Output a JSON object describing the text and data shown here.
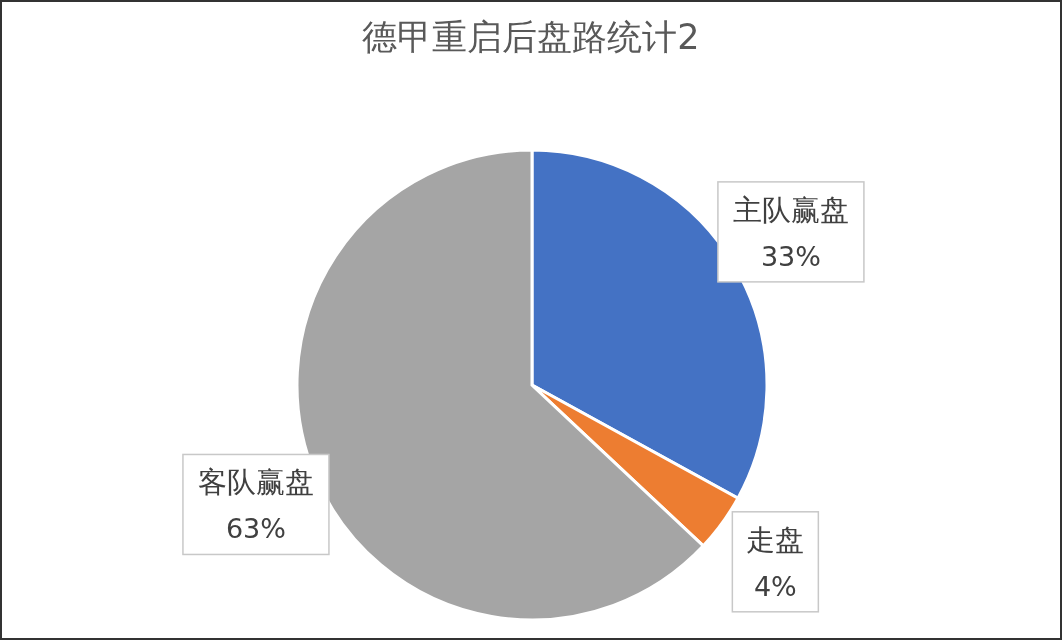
{
  "chart_data": {
    "type": "pie",
    "title": "德甲重启后盘路统计2",
    "categories": [
      "主队赢盘",
      "走盘",
      "客队赢盘"
    ],
    "values": [
      33,
      4,
      63
    ],
    "value_labels": [
      "33%",
      "4%",
      "63%"
    ],
    "colors": [
      "#4472c4",
      "#ed7d31",
      "#a5a5a5"
    ],
    "legend": false
  }
}
